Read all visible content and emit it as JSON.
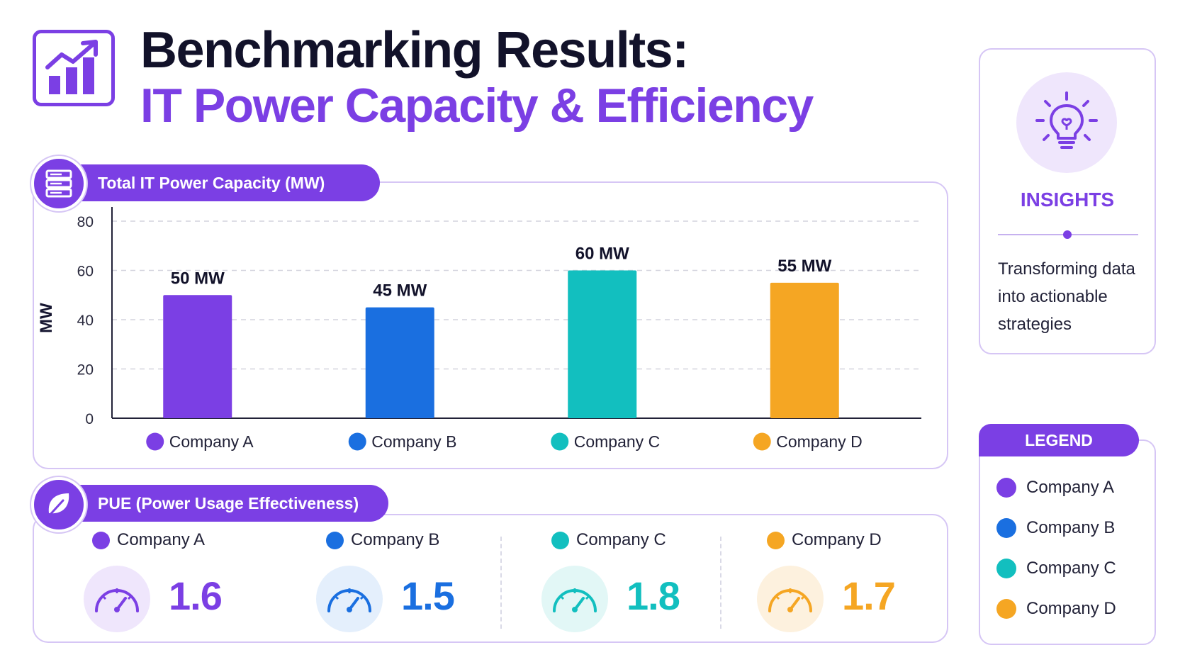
{
  "title": {
    "line1": "Benchmarking Results:",
    "line2": "IT Power Capacity & Efficiency",
    "icon": "chart-growth-icon"
  },
  "capacity": {
    "heading": "Total IT Power Capacity (MW)",
    "icon": "server-icon"
  },
  "pue": {
    "heading": "PUE (Power Usage Effectiveness)",
    "icon": "leaf-icon",
    "items": [
      {
        "name": "Company A",
        "value": "1.6",
        "color": "#7b3fe4"
      },
      {
        "name": "Company B",
        "value": "1.5",
        "color": "#1a6fe0"
      },
      {
        "name": "Company C",
        "value": "1.8",
        "color": "#12bfbf"
      },
      {
        "name": "Company D",
        "value": "1.7",
        "color": "#f5a623"
      }
    ]
  },
  "insights": {
    "title": "INSIGHTS",
    "text": "Transforming data into actionable strategies",
    "icon": "lightbulb-icon"
  },
  "legend": {
    "title": "LEGEND",
    "items": [
      {
        "name": "Company A",
        "color": "#7b3fe4"
      },
      {
        "name": "Company B",
        "color": "#1a6fe0"
      },
      {
        "name": "Company C",
        "color": "#12bfbf"
      },
      {
        "name": "Company D",
        "color": "#f5a623"
      }
    ]
  },
  "chart_data": {
    "type": "bar",
    "title": "Total IT Power Capacity (MW)",
    "ylabel": "MW",
    "xlabel": "",
    "ylim": [
      0,
      80
    ],
    "yticks": [
      0,
      20,
      40,
      60,
      80
    ],
    "grid": true,
    "categories": [
      "Company A",
      "Company B",
      "Company C",
      "Company D"
    ],
    "values": [
      50,
      45,
      60,
      55
    ],
    "data_labels": [
      "50 MW",
      "45 MW",
      "60 MW",
      "55 MW"
    ],
    "colors": [
      "#7b3fe4",
      "#1a6fe0",
      "#12bfbf",
      "#f5a623"
    ]
  }
}
